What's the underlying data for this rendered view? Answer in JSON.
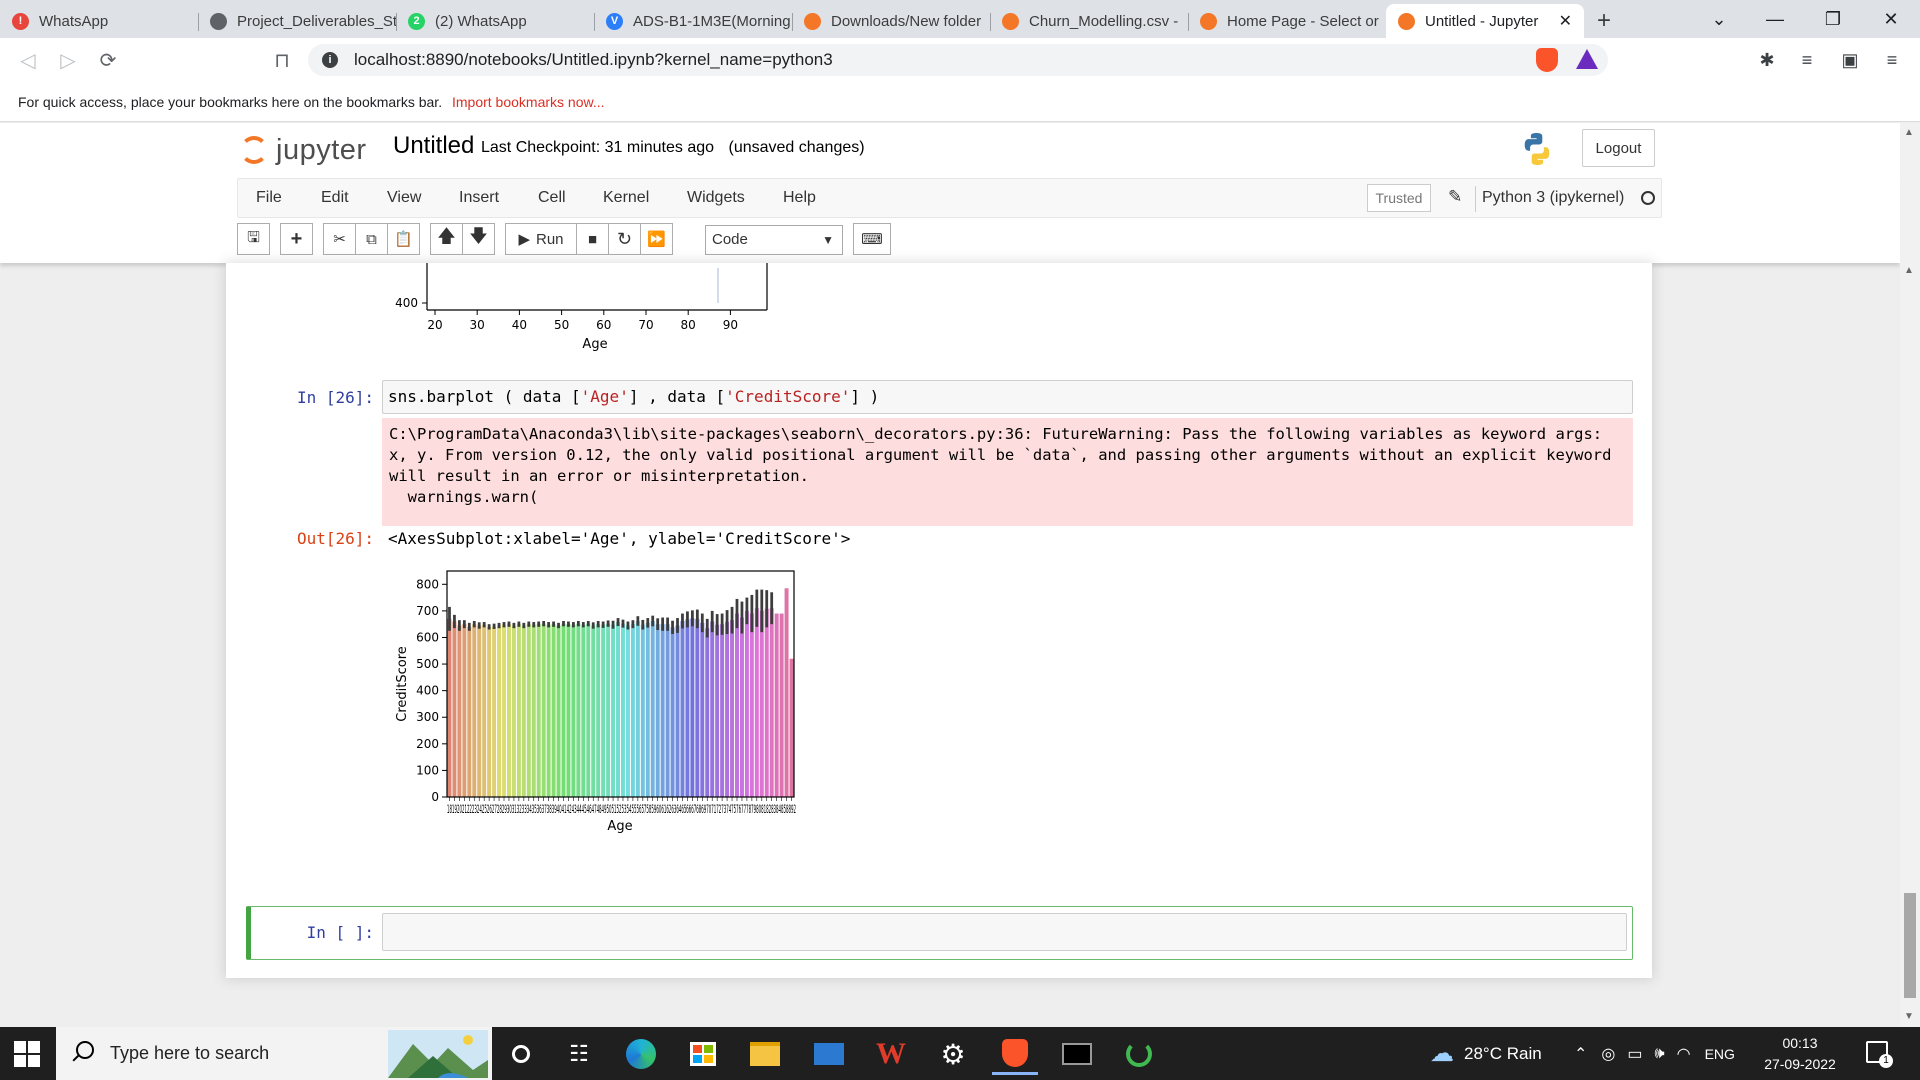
{
  "browser": {
    "tabs": [
      {
        "label": "WhatsApp",
        "fav_color": "#e8453c",
        "fav_glyph": "!"
      },
      {
        "label": "Project_Deliverables_St",
        "fav_color": "#5f6368",
        "fav_glyph": ""
      },
      {
        "label": "(2) WhatsApp",
        "fav_color": "#25d366",
        "fav_glyph": "2"
      },
      {
        "label": "ADS-B1-1M3E(Morning",
        "fav_color": "#2d7ff9",
        "fav_glyph": "V"
      },
      {
        "label": "Downloads/New folder",
        "fav_color": "#f37726",
        "fav_glyph": ""
      },
      {
        "label": "Churn_Modelling.csv -",
        "fav_color": "#f37726",
        "fav_glyph": ""
      },
      {
        "label": "Home Page - Select or",
        "fav_color": "#f37726",
        "fav_glyph": ""
      },
      {
        "label": "Untitled - Jupyter",
        "fav_color": "#f37726",
        "fav_glyph": ""
      }
    ],
    "url": "localhost:8890/notebooks/Untitled.ipynb?kernel_name=python3",
    "bookmarks_text": "For quick access, place your bookmarks here on the bookmarks bar.",
    "bookmarks_link": "Import bookmarks now..."
  },
  "jupyter": {
    "logo": "jupyter",
    "notebook_name": "Untitled",
    "checkpoint": "Last Checkpoint: 31 minutes ago",
    "unsaved": "(unsaved changes)",
    "logout": "Logout",
    "menu": [
      "File",
      "Edit",
      "View",
      "Insert",
      "Cell",
      "Kernel",
      "Widgets",
      "Help"
    ],
    "trusted": "Trusted",
    "kernel": "Python 3 (ipykernel)",
    "run_label": "Run",
    "cell_type": "Code"
  },
  "cells": {
    "top_plot": {
      "y_tick": "400",
      "x_ticks": [
        "20",
        "30",
        "40",
        "50",
        "60",
        "70",
        "80",
        "90"
      ],
      "xlabel": "Age"
    },
    "cell26": {
      "in_prompt": "In [26]:",
      "code_parts": [
        "sns.barplot ( data [",
        "'Age'",
        "] , data [",
        "'CreditScore'",
        "] )"
      ],
      "stderr": "C:\\ProgramData\\Anaconda3\\lib\\site-packages\\seaborn\\_decorators.py:36: FutureWarning: Pass the following variables as keyword args: x, y. From version 0.12, the only valid positional argument will be `data`, and passing other arguments without an explicit keyword will result in an error or misinterpretation.\n  warnings.warn(",
      "out_prompt": "Out[26]:",
      "out_text": "<AxesSubplot:xlabel='Age', ylabel='CreditScore'>"
    },
    "empty_cell": {
      "in_prompt": "In [ ]:"
    }
  },
  "chart_data": {
    "type": "bar",
    "xlabel": "Age",
    "ylabel": "CreditScore",
    "ylim": [
      0,
      850
    ],
    "y_ticks": [
      0,
      100,
      200,
      300,
      400,
      500,
      600,
      700,
      800
    ],
    "x_tick_text": "18192021222324252627282930313233343536373839404142434445464748495051525354555657585960616263646566676869707172737475767778798081828384858892",
    "categories": [
      18,
      19,
      20,
      21,
      22,
      23,
      24,
      25,
      26,
      27,
      28,
      29,
      30,
      31,
      32,
      33,
      34,
      35,
      36,
      37,
      38,
      39,
      40,
      41,
      42,
      43,
      44,
      45,
      46,
      47,
      48,
      49,
      50,
      51,
      52,
      53,
      54,
      55,
      56,
      57,
      58,
      59,
      60,
      61,
      62,
      63,
      64,
      65,
      66,
      67,
      68,
      69,
      70,
      71,
      72,
      73,
      74,
      75,
      76,
      77,
      78,
      79,
      80,
      81,
      82,
      83,
      84,
      85,
      88,
      92
    ],
    "values": [
      670,
      660,
      645,
      650,
      640,
      650,
      645,
      648,
      640,
      642,
      645,
      648,
      650,
      645,
      650,
      645,
      650,
      648,
      650,
      652,
      648,
      650,
      645,
      652,
      650,
      648,
      652,
      648,
      652,
      645,
      650,
      648,
      652,
      648,
      658,
      652,
      645,
      650,
      662,
      648,
      655,
      662,
      650,
      650,
      650,
      638,
      645,
      662,
      668,
      672,
      670,
      655,
      635,
      660,
      648,
      650,
      658,
      665,
      690,
      675,
      700,
      690,
      710,
      700,
      708,
      710,
      690,
      690,
      785,
      520
    ],
    "errors": [
      45,
      25,
      20,
      15,
      15,
      12,
      12,
      10,
      10,
      10,
      10,
      10,
      10,
      10,
      10,
      10,
      10,
      10,
      10,
      10,
      10,
      10,
      10,
      10,
      10,
      10,
      10,
      10,
      10,
      12,
      12,
      12,
      12,
      15,
      15,
      15,
      15,
      15,
      18,
      18,
      18,
      20,
      22,
      25,
      25,
      25,
      28,
      28,
      30,
      30,
      35,
      35,
      35,
      40,
      40,
      40,
      45,
      50,
      55,
      60,
      50,
      70,
      70,
      80,
      70,
      60,
      0,
      0,
      0,
      0
    ],
    "palette": "husl"
  },
  "taskbar": {
    "search_placeholder": "Type here to search",
    "weather": "28°C  Rain",
    "lang": "ENG",
    "time": "00:13",
    "date": "27-09-2022",
    "notif_count": "1"
  }
}
